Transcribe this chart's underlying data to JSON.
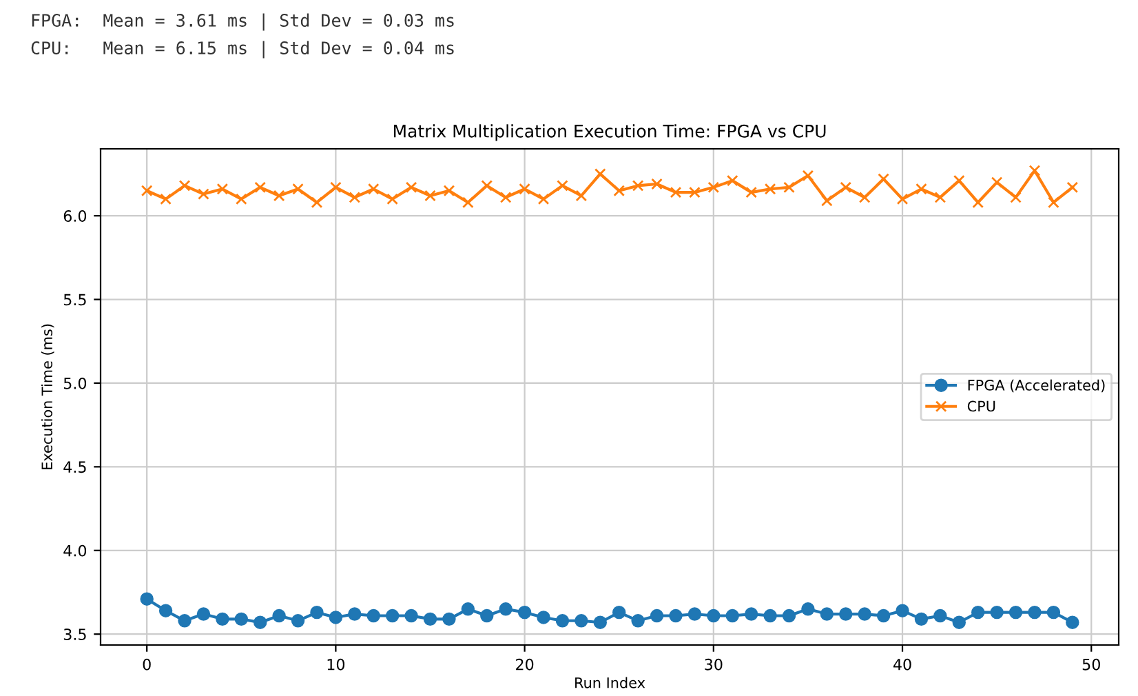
{
  "chart_data": {
    "type": "line",
    "title": "Matrix Multiplication Execution Time: FPGA vs CPU",
    "xlabel": "Run Index",
    "ylabel": "Execution Time (ms)",
    "annotations": [
      "FPGA:  Mean = 3.61 ms | Std Dev = 0.03 ms",
      "CPU:   Mean = 6.15 ms | Std Dev = 0.04 ms"
    ],
    "x": [
      0,
      1,
      2,
      3,
      4,
      5,
      6,
      7,
      8,
      9,
      10,
      11,
      12,
      13,
      14,
      15,
      16,
      17,
      18,
      19,
      20,
      21,
      22,
      23,
      24,
      25,
      26,
      27,
      28,
      29,
      30,
      31,
      32,
      33,
      34,
      35,
      36,
      37,
      38,
      39,
      40,
      41,
      42,
      43,
      44,
      45,
      46,
      47,
      48,
      49
    ],
    "series": [
      {
        "name": "FPGA (Accelerated)",
        "color": "#1f77b4",
        "marker": "circle",
        "values": [
          3.71,
          3.64,
          3.58,
          3.62,
          3.59,
          3.59,
          3.57,
          3.61,
          3.58,
          3.63,
          3.6,
          3.62,
          3.61,
          3.61,
          3.61,
          3.59,
          3.59,
          3.65,
          3.61,
          3.65,
          3.63,
          3.6,
          3.58,
          3.58,
          3.57,
          3.63,
          3.58,
          3.61,
          3.61,
          3.62,
          3.61,
          3.61,
          3.62,
          3.61,
          3.61,
          3.65,
          3.62,
          3.62,
          3.62,
          3.61,
          3.64,
          3.59,
          3.61,
          3.57,
          3.63,
          3.63,
          3.63,
          3.63,
          3.63,
          3.57
        ]
      },
      {
        "name": "CPU",
        "color": "#ff7f0e",
        "marker": "cross",
        "values": [
          6.15,
          6.1,
          6.18,
          6.13,
          6.16,
          6.1,
          6.17,
          6.12,
          6.16,
          6.08,
          6.17,
          6.11,
          6.16,
          6.1,
          6.17,
          6.12,
          6.15,
          6.08,
          6.18,
          6.11,
          6.16,
          6.1,
          6.18,
          6.12,
          6.25,
          6.15,
          6.18,
          6.19,
          6.14,
          6.14,
          6.17,
          6.21,
          6.14,
          6.16,
          6.17,
          6.24,
          6.09,
          6.17,
          6.11,
          6.22,
          6.1,
          6.16,
          6.11,
          6.21,
          6.08,
          6.2,
          6.11,
          6.27,
          6.08,
          6.17
        ]
      }
    ],
    "xlim": [
      -2.45,
      51.45
    ],
    "xticks": [
      0,
      10,
      20,
      30,
      40,
      50
    ],
    "ylim": [
      3.435,
      6.4
    ],
    "yticks": [
      {
        "value": 3.5,
        "label": "3.5"
      },
      {
        "value": 4.0,
        "label": "4.0"
      },
      {
        "value": 4.5,
        "label": "4.5"
      },
      {
        "value": 5.0,
        "label": "5.0"
      },
      {
        "value": 5.5,
        "label": "5.5"
      },
      {
        "value": 6.0,
        "label": "6.0"
      }
    ],
    "grid": true,
    "legend": "center right",
    "line_style": "solid"
  }
}
